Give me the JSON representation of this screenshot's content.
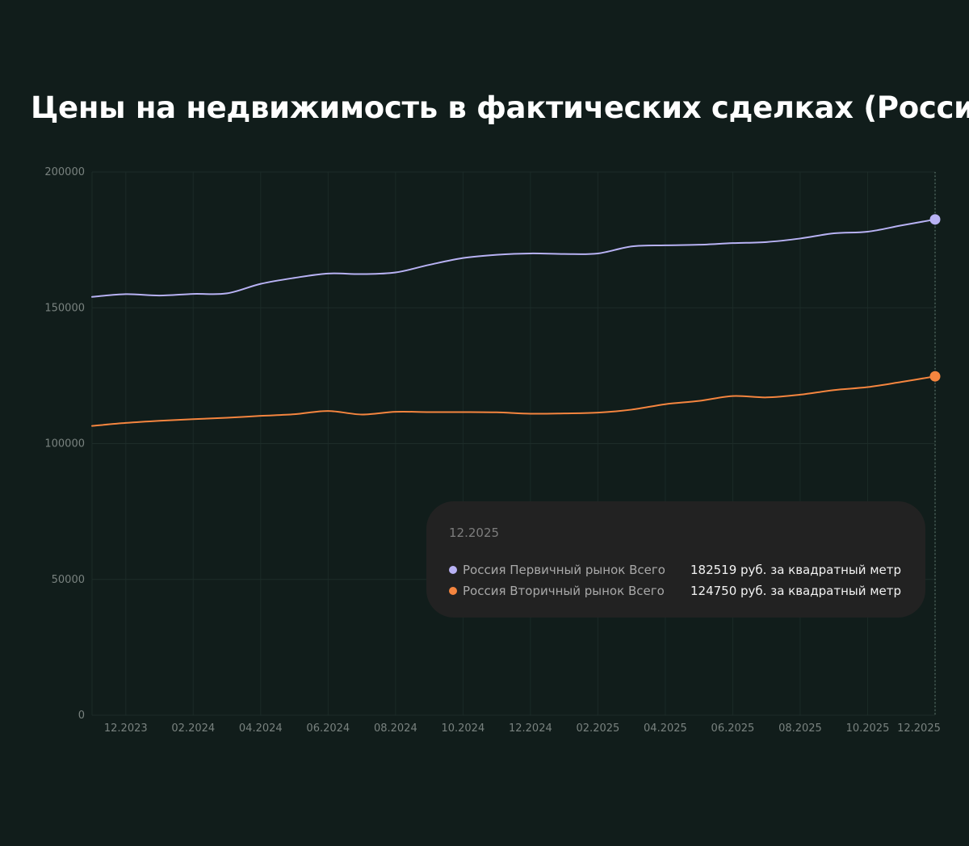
{
  "chart_data": {
    "type": "line",
    "title": "Цены на недвижимость в фактических сделках (Россия)",
    "xlabel": "",
    "ylabel": "",
    "x": [
      "11.2023",
      "12.2023",
      "01.2024",
      "02.2024",
      "03.2024",
      "04.2024",
      "05.2024",
      "06.2024",
      "07.2024",
      "08.2024",
      "09.2024",
      "10.2024",
      "11.2024",
      "12.2024",
      "01.2025",
      "02.2025",
      "03.2025",
      "04.2025",
      "05.2025",
      "06.2025",
      "07.2025",
      "08.2025",
      "09.2025",
      "10.2025",
      "11.2025",
      "12.2025"
    ],
    "x_tick_labels": [
      "12.2023",
      "02.2024",
      "04.2024",
      "06.2024",
      "08.2024",
      "10.2024",
      "12.2024",
      "02.2025",
      "04.2025",
      "06.2025",
      "08.2025",
      "10.2025",
      "12.2025"
    ],
    "y_ticks": [
      0,
      50000,
      100000,
      150000,
      200000
    ],
    "ylim": [
      0,
      200000
    ],
    "grid": true,
    "series": [
      {
        "name": "Россия Первичный рынок Всего",
        "color": "#b8b2f4",
        "values": [
          154000,
          155000,
          154500,
          155100,
          155300,
          158800,
          161000,
          162600,
          162400,
          163000,
          165800,
          168300,
          169500,
          170000,
          169800,
          170000,
          172600,
          173000,
          173200,
          173800,
          174200,
          175500,
          177400,
          178000,
          180300,
          182519
        ]
      },
      {
        "name": "Россия Вторичный рынок Всего",
        "color": "#f5853f",
        "values": [
          106500,
          107600,
          108400,
          109000,
          109500,
          110200,
          110800,
          112000,
          110700,
          111700,
          111600,
          111600,
          111500,
          111000,
          111100,
          111400,
          112500,
          114500,
          115700,
          117500,
          117000,
          118000,
          119700,
          120800,
          122700,
          124750
        ]
      }
    ]
  },
  "tooltip": {
    "date": "12.2025",
    "rows": [
      {
        "name": "Россия Первичный рынок Всего",
        "value": "182519 руб. за квадратный метр",
        "color": "#b8b2f4"
      },
      {
        "name": "Россия Вторичный рынок Всего",
        "value": "124750 руб. за квадратный метр",
        "color": "#f5853f"
      }
    ]
  }
}
